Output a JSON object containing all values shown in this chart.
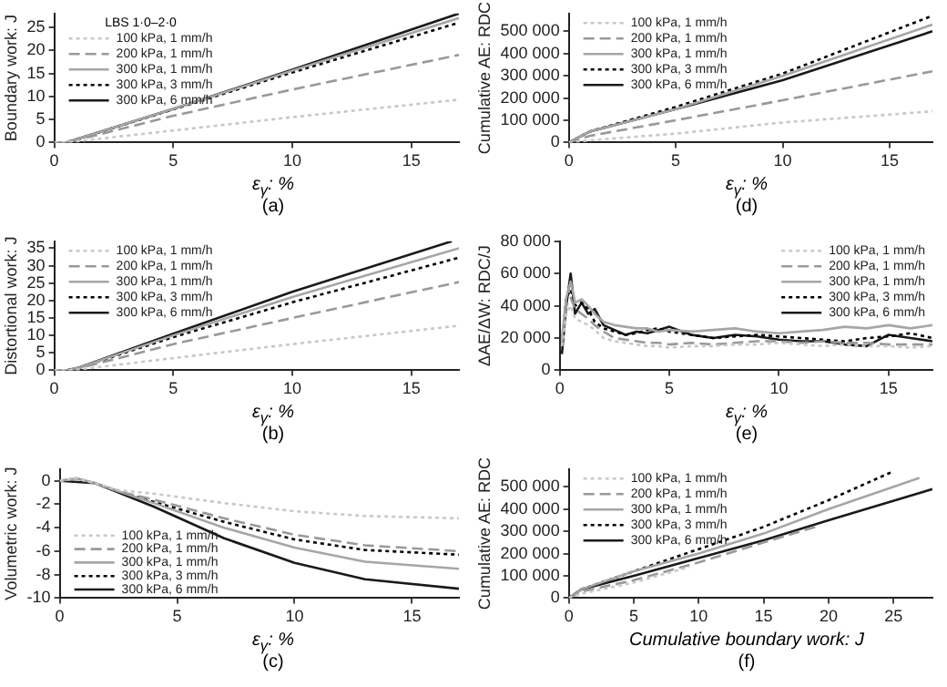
{
  "chart_data": [
    {
      "type": "line",
      "ylabel": "Boundary work: J",
      "xlabel": "ε$_{γ}$: %",
      "legend_title": "LBS 1·0–2·0",
      "legend": "top left",
      "annotations": [
        "(a)"
      ],
      "xlim": [
        0,
        17
      ],
      "xticks": [
        0,
        5,
        10,
        15
      ],
      "ylim": [
        0,
        28
      ],
      "yticks": [
        0,
        5,
        10,
        15,
        20,
        25
      ],
      "series": [
        {
          "name": "100 kPa, 1 mm/h",
          "color": "#c8c8c8",
          "line_style": "dotted",
          "x": [
            0,
            0.5,
            1,
            5,
            10,
            17
          ],
          "values": [
            0,
            0,
            0.3,
            2.6,
            5.5,
            9.3
          ]
        },
        {
          "name": "200 kPa, 1 mm/h",
          "color": "#999999",
          "line_style": "dashed",
          "x": [
            0,
            0.5,
            1,
            5,
            10,
            17
          ],
          "values": [
            0,
            0,
            0.6,
            5.8,
            11.5,
            19
          ]
        },
        {
          "name": "300 kPa, 1 mm/h",
          "color": "#a6a6a6",
          "line_style": "solid",
          "x": [
            0,
            0.5,
            1,
            5,
            10,
            17
          ],
          "values": [
            0,
            0,
            0.8,
            7.3,
            15.6,
            27
          ]
        },
        {
          "name": "300 kPa, 3 mm/h",
          "color": "#000000",
          "line_style": "dotted",
          "x": [
            0,
            0.5,
            1,
            5,
            10,
            17
          ],
          "values": [
            0,
            0,
            0.8,
            7.2,
            15.2,
            26
          ]
        },
        {
          "name": "300 kPa, 6 mm/h",
          "color": "#1a1a1a",
          "line_style": "solid",
          "x": [
            0,
            0.5,
            1,
            5,
            10,
            17
          ],
          "values": [
            0,
            0,
            0.8,
            7.3,
            15.8,
            28
          ]
        }
      ]
    },
    {
      "type": "line",
      "ylabel": "Cumulative AE: RDC",
      "xlabel": "ε$_{γ}$: %",
      "legend": "top left",
      "annotations": [
        "(d)"
      ],
      "xlim": [
        0,
        17
      ],
      "xticks": [
        0,
        5,
        10,
        15
      ],
      "ylim": [
        0,
        580000
      ],
      "yticks": [
        0,
        {
          "value": 100000,
          "label": "100 000"
        },
        {
          "value": 200000,
          "label": "200 000"
        },
        {
          "value": 300000,
          "label": "300 000"
        },
        {
          "value": 400000,
          "label": "400 000"
        },
        {
          "value": 500000,
          "label": "500 000"
        }
      ],
      "series": [
        {
          "name": "100 kPa, 1 mm/h",
          "color": "#c8c8c8",
          "line_style": "dotted",
          "x": [
            0,
            1,
            5,
            10,
            17
          ],
          "values": [
            0,
            10000,
            40000,
            90000,
            140000
          ]
        },
        {
          "name": "200 kPa, 1 mm/h",
          "color": "#999999",
          "line_style": "dashed",
          "x": [
            0,
            1,
            5,
            10,
            17
          ],
          "values": [
            0,
            30000,
            100000,
            190000,
            320000
          ]
        },
        {
          "name": "300 kPa, 1 mm/h",
          "color": "#a6a6a6",
          "line_style": "solid",
          "x": [
            0,
            1,
            5,
            10,
            17
          ],
          "values": [
            0,
            50000,
            150000,
            300000,
            530000
          ]
        },
        {
          "name": "300 kPa, 3 mm/h",
          "color": "#000000",
          "line_style": "dotted",
          "x": [
            0,
            1,
            5,
            10,
            17
          ],
          "values": [
            0,
            50000,
            160000,
            310000,
            570000
          ]
        },
        {
          "name": "300 kPa, 6 mm/h",
          "color": "#1a1a1a",
          "line_style": "solid",
          "x": [
            0,
            1,
            5,
            10,
            17
          ],
          "values": [
            0,
            50000,
            150000,
            280000,
            500000
          ]
        }
      ]
    },
    {
      "type": "line",
      "ylabel": "Distortional work: J",
      "xlabel": "ε$_{γ}$: %",
      "legend": "top left",
      "annotations": [
        "(b)"
      ],
      "xlim": [
        0,
        17
      ],
      "xticks": [
        0,
        5,
        10,
        15
      ],
      "ylim": [
        0,
        37
      ],
      "yticks": [
        0,
        5,
        10,
        15,
        20,
        25,
        30,
        35
      ],
      "series": [
        {
          "name": "100 kPa, 1 mm/h",
          "color": "#c8c8c8",
          "line_style": "dotted",
          "x": [
            0,
            0.5,
            1,
            5,
            10,
            17
          ],
          "values": [
            0,
            0,
            0.2,
            3.5,
            7.5,
            12.8
          ]
        },
        {
          "name": "200 kPa, 1 mm/h",
          "color": "#999999",
          "line_style": "dashed",
          "x": [
            0,
            0.5,
            1,
            5,
            10,
            17
          ],
          "values": [
            0,
            0,
            0.5,
            7.5,
            15,
            25.3
          ]
        },
        {
          "name": "300 kPa, 1 mm/h",
          "color": "#a6a6a6",
          "line_style": "solid",
          "x": [
            0,
            0.5,
            1,
            5,
            10,
            17
          ],
          "values": [
            0,
            0,
            0.7,
            10,
            21,
            35
          ]
        },
        {
          "name": "300 kPa, 3 mm/h",
          "color": "#000000",
          "line_style": "dotted",
          "x": [
            0,
            0.5,
            1,
            5,
            10,
            17
          ],
          "values": [
            0,
            0,
            0.7,
            9.5,
            19.5,
            32.3
          ]
        },
        {
          "name": "300 kPa, 6 mm/h",
          "color": "#1a1a1a",
          "line_style": "solid",
          "x": [
            0,
            0.5,
            1,
            5,
            10,
            16.7
          ],
          "values": [
            0,
            0,
            0.7,
            10.5,
            22.5,
            37
          ]
        }
      ]
    },
    {
      "type": "line",
      "ylabel": "ΔAE/ΔW: RDC/J",
      "xlabel": "ε$_{γ}$: %",
      "legend": "top right",
      "annotations": [
        "(e)"
      ],
      "xlim": [
        0,
        17
      ],
      "xticks": [
        0,
        5,
        10,
        15
      ],
      "ylim": [
        0,
        80000
      ],
      "yticks": [
        0,
        {
          "value": 20000,
          "label": "20 000"
        },
        {
          "value": 40000,
          "label": "40 000"
        },
        {
          "value": 60000,
          "label": "60 000"
        },
        {
          "value": 80000,
          "label": "80 000"
        }
      ],
      "series": [
        {
          "name": "100 kPa, 1 mm/h",
          "color": "#c8c8c8",
          "line_style": "dotted",
          "x": [
            0.1,
            0.3,
            0.5,
            0.7,
            1,
            1.3,
            1.6,
            2,
            2.5,
            3,
            3.5,
            4,
            4.5,
            5,
            6,
            7,
            8,
            9,
            10,
            11,
            12,
            13,
            14,
            15,
            16,
            17
          ],
          "values": [
            15000,
            35000,
            40000,
            32000,
            30000,
            28000,
            25000,
            20000,
            18000,
            17000,
            16000,
            15000,
            15000,
            14000,
            15000,
            15000,
            16000,
            16000,
            17000,
            16000,
            15000,
            16000,
            15000,
            15000,
            14000,
            15000
          ]
        },
        {
          "name": "200 kPa, 1 mm/h",
          "color": "#999999",
          "line_style": "dashed",
          "x": [
            0.1,
            0.3,
            0.5,
            0.7,
            1,
            1.3,
            1.6,
            2,
            2.5,
            3,
            3.5,
            4,
            4.5,
            5,
            6,
            7,
            8,
            9,
            10,
            11,
            12,
            13,
            14,
            15,
            16,
            17
          ],
          "values": [
            15000,
            40000,
            45000,
            38000,
            35000,
            32000,
            28000,
            24000,
            20000,
            19000,
            18000,
            17000,
            17000,
            16000,
            17000,
            16000,
            17000,
            18000,
            18000,
            17000,
            18000,
            17000,
            17000,
            16000,
            16000,
            16000
          ]
        },
        {
          "name": "300 kPa, 1 mm/h",
          "color": "#a6a6a6",
          "line_style": "solid",
          "x": [
            0.1,
            0.3,
            0.5,
            0.7,
            1,
            1.3,
            1.6,
            2,
            2.5,
            3,
            3.5,
            4,
            4.5,
            5,
            6,
            7,
            8,
            9,
            10,
            11,
            12,
            13,
            14,
            15,
            16,
            17
          ],
          "values": [
            20000,
            45000,
            55000,
            42000,
            44000,
            40000,
            35000,
            30000,
            28000,
            27000,
            26000,
            26000,
            24000,
            25000,
            24000,
            25000,
            26000,
            24000,
            23000,
            24000,
            25000,
            27000,
            26000,
            28000,
            26000,
            28000
          ]
        },
        {
          "name": "300 kPa, 3 mm/h",
          "color": "#000000",
          "line_style": "dotted",
          "x": [
            0.1,
            0.3,
            0.5,
            0.7,
            1,
            1.3,
            1.6,
            2,
            2.5,
            3,
            3.5,
            4,
            4.5,
            5,
            6,
            7,
            8,
            9,
            10,
            11,
            12,
            13,
            14,
            15,
            16,
            17
          ],
          "values": [
            15000,
            45000,
            50000,
            40000,
            42000,
            38000,
            30000,
            26000,
            24000,
            22000,
            23000,
            25000,
            26000,
            24000,
            22000,
            20000,
            21000,
            22000,
            21000,
            20000,
            19000,
            18000,
            20000,
            21000,
            23000,
            20000
          ]
        },
        {
          "name": "300 kPa, 6 mm/h",
          "color": "#1a1a1a",
          "line_style": "solid",
          "x": [
            0.1,
            0.3,
            0.5,
            0.7,
            1,
            1.3,
            1.6,
            2,
            2.5,
            3,
            3.5,
            4,
            4.5,
            5,
            6,
            7,
            8,
            9,
            10,
            11,
            12,
            13,
            14,
            15,
            16,
            17
          ],
          "values": [
            10000,
            40000,
            60000,
            35000,
            42000,
            35000,
            38000,
            28000,
            25000,
            22000,
            24000,
            23000,
            25000,
            27000,
            22000,
            20000,
            22000,
            21000,
            19000,
            18000,
            18000,
            16000,
            15000,
            22000,
            20000,
            18000
          ]
        }
      ]
    },
    {
      "type": "line",
      "ylabel": "Volumetric work: J",
      "xlabel": "ε$_{γ}$: %",
      "legend": "bottom left",
      "annotations": [
        "(c)"
      ],
      "xlim": [
        0,
        17
      ],
      "xticks": [
        0,
        5,
        10,
        15
      ],
      "ylim": [
        -10,
        1
      ],
      "yticks": [
        -10,
        -8,
        -6,
        -4,
        -2,
        0
      ],
      "series": [
        {
          "name": "100 kPa, 1 mm/h",
          "color": "#c8c8c8",
          "line_style": "dotted",
          "x": [
            0,
            0.7,
            1.5,
            2.5,
            4,
            7,
            10,
            13,
            17
          ],
          "values": [
            0,
            0.2,
            -0.2,
            -0.8,
            -1.1,
            -1.9,
            -2.6,
            -3,
            -3.2
          ]
        },
        {
          "name": "200 kPa, 1 mm/h",
          "color": "#999999",
          "line_style": "dashed",
          "x": [
            0,
            0.7,
            1.5,
            2.5,
            4,
            7,
            10,
            13,
            17
          ],
          "values": [
            0,
            0.2,
            -0.2,
            -0.9,
            -1.6,
            -3.2,
            -4.6,
            -5.5,
            -6
          ]
        },
        {
          "name": "300 kPa, 1 mm/h",
          "color": "#a6a6a6",
          "line_style": "solid",
          "x": [
            0,
            0.7,
            1.5,
            2.5,
            4,
            7,
            10,
            13,
            17
          ],
          "values": [
            0,
            0.2,
            -0.2,
            -0.9,
            -1.9,
            -4,
            -5.7,
            -6.9,
            -7.5
          ]
        },
        {
          "name": "300 kPa, 3 mm/h",
          "color": "#000000",
          "line_style": "dotted",
          "x": [
            0,
            0.7,
            1.5,
            2.5,
            4,
            7,
            10,
            13,
            17
          ],
          "values": [
            0,
            0.2,
            -0.2,
            -0.9,
            -1.8,
            -3.5,
            -5,
            -5.9,
            -6.3
          ]
        },
        {
          "name": "300 kPa, 6 mm/h",
          "color": "#1a1a1a",
          "line_style": "solid",
          "x": [
            0,
            1.5,
            2.5,
            4,
            7,
            10,
            13,
            17
          ],
          "values": [
            0,
            -0.2,
            -1,
            -2.2,
            -4.9,
            -7,
            -8.4,
            -9.2
          ]
        }
      ]
    },
    {
      "type": "line",
      "ylabel": "Cumulative AE: RDC",
      "xlabel": "Cumulative boundary work: J",
      "legend": "top left",
      "annotations": [
        "(f)"
      ],
      "xlim": [
        0,
        28
      ],
      "xticks": [
        0,
        5,
        10,
        15,
        20,
        25
      ],
      "ylim": [
        0,
        580000
      ],
      "yticks": [
        0,
        {
          "value": 100000,
          "label": "100 000"
        },
        {
          "value": 200000,
          "label": "200 000"
        },
        {
          "value": 300000,
          "label": "300 000"
        },
        {
          "value": 400000,
          "label": "400 000"
        },
        {
          "value": 500000,
          "label": "500 000"
        }
      ],
      "series": [
        {
          "name": "100 kPa, 1 mm/h",
          "color": "#c8c8c8",
          "line_style": "dotted",
          "x": [
            0,
            1,
            5,
            9.3
          ],
          "values": [
            0,
            20000,
            70000,
            140000
          ]
        },
        {
          "name": "200 kPa, 1 mm/h",
          "color": "#999999",
          "line_style": "dashed",
          "x": [
            0,
            1,
            5,
            10,
            15,
            19
          ],
          "values": [
            0,
            30000,
            80000,
            160000,
            250000,
            320000
          ]
        },
        {
          "name": "300 kPa, 1 mm/h",
          "color": "#a6a6a6",
          "line_style": "solid",
          "x": [
            0,
            1,
            5,
            10,
            15,
            20,
            27
          ],
          "values": [
            0,
            40000,
            120000,
            200000,
            290000,
            400000,
            540000
          ]
        },
        {
          "name": "300 kPa, 3 mm/h",
          "color": "#000000",
          "line_style": "dotted",
          "x": [
            0,
            1,
            5,
            10,
            15,
            20,
            25
          ],
          "values": [
            0,
            40000,
            120000,
            220000,
            320000,
            440000,
            570000
          ]
        },
        {
          "name": "300 kPa, 6 mm/h",
          "color": "#1a1a1a",
          "line_style": "solid",
          "x": [
            0,
            1,
            5,
            10,
            15,
            20,
            28
          ],
          "values": [
            0,
            40000,
            100000,
            180000,
            260000,
            350000,
            490000
          ]
        }
      ]
    }
  ]
}
